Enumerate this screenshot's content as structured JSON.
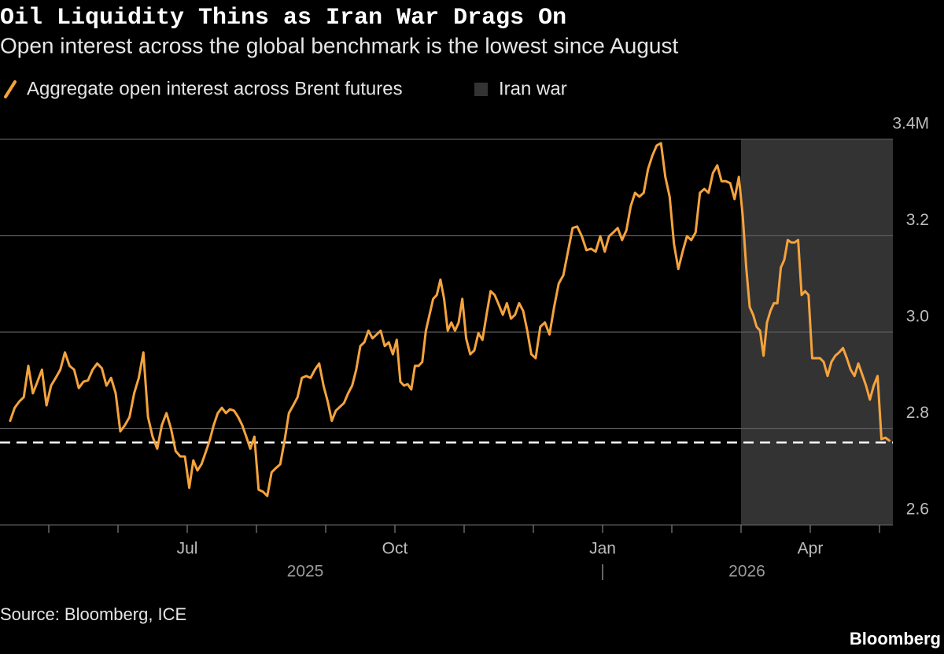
{
  "chart_data": {
    "type": "line",
    "title": "Oil Liquidity Thins as Iran War Drags On",
    "subtitle": "Open interest across the global benchmark is the lowest since August",
    "source": "Source: Bloomberg, ICE",
    "brand": "Bloomberg",
    "x": [
      "2025-04",
      "2025-04",
      "2025-04",
      "2025-04",
      "2025-04",
      "2025-04",
      "2025-04",
      "2025-04",
      "2025-04",
      "2025-05",
      "2025-05",
      "2025-05",
      "2025-05",
      "2025-05",
      "2025-05",
      "2025-05",
      "2025-05",
      "2025-05",
      "2025-05",
      "2025-05",
      "2025-05",
      "2025-05",
      "2025-05",
      "2025-05",
      "2025-06",
      "2025-06",
      "2025-06",
      "2025-06",
      "2025-06",
      "2025-06",
      "2025-06",
      "2025-06",
      "2025-06",
      "2025-06",
      "2025-06",
      "2025-06",
      "2025-06",
      "2025-06",
      "2025-06",
      "2025-07",
      "2025-07",
      "2025-07",
      "2025-07",
      "2025-07",
      "2025-07",
      "2025-07",
      "2025-07",
      "2025-07",
      "2025-07",
      "2025-07",
      "2025-07",
      "2025-07",
      "2025-07",
      "2025-07",
      "2025-07",
      "2025-07",
      "2025-08",
      "2025-08",
      "2025-08",
      "2025-08",
      "2025-08",
      "2025-08",
      "2025-08",
      "2025-08",
      "2025-08",
      "2025-08",
      "2025-08",
      "2025-08",
      "2025-08",
      "2025-08",
      "2025-08",
      "2025-08",
      "2025-09",
      "2025-09",
      "2025-09",
      "2025-09",
      "2025-09",
      "2025-09",
      "2025-09",
      "2025-09",
      "2025-09",
      "2025-09",
      "2025-09",
      "2025-09",
      "2025-09",
      "2025-09",
      "2025-09",
      "2025-09",
      "2025-09",
      "2025-10",
      "2025-10",
      "2025-10",
      "2025-10",
      "2025-10",
      "2025-10",
      "2025-10",
      "2025-10",
      "2025-10",
      "2025-10",
      "2025-10",
      "2025-10",
      "2025-10",
      "2025-10",
      "2025-10",
      "2025-10",
      "2025-10",
      "2025-10",
      "2025-10",
      "2025-11",
      "2025-11",
      "2025-11",
      "2025-11",
      "2025-11",
      "2025-11",
      "2025-11",
      "2025-11",
      "2025-11",
      "2025-11",
      "2025-11",
      "2025-11",
      "2025-11",
      "2025-11",
      "2025-11",
      "2025-11",
      "2025-11",
      "2025-12",
      "2025-12",
      "2025-12",
      "2025-12",
      "2025-12",
      "2025-12",
      "2025-12",
      "2025-12",
      "2025-12",
      "2025-12",
      "2025-12",
      "2025-12",
      "2025-12",
      "2025-12",
      "2025-12",
      "2026-01",
      "2026-01",
      "2026-01",
      "2026-01",
      "2026-01",
      "2026-01",
      "2026-01",
      "2026-01",
      "2026-01",
      "2026-01",
      "2026-01",
      "2026-01",
      "2026-01",
      "2026-01",
      "2026-01",
      "2026-01",
      "2026-02",
      "2026-02",
      "2026-02",
      "2026-02",
      "2026-02",
      "2026-02",
      "2026-02",
      "2026-02",
      "2026-02",
      "2026-02",
      "2026-02",
      "2026-02",
      "2026-02",
      "2026-02",
      "2026-02",
      "2026-02",
      "2026-03",
      "2026-03",
      "2026-03",
      "2026-03",
      "2026-03",
      "2026-03",
      "2026-03",
      "2026-03",
      "2026-03",
      "2026-03",
      "2026-03",
      "2026-03",
      "2026-03",
      "2026-03",
      "2026-03",
      "2026-03",
      "2026-03",
      "2026-03",
      "2026-03",
      "2026-03",
      "2026-04",
      "2026-04",
      "2026-04",
      "2026-04",
      "2026-04",
      "2026-04",
      "2026-04",
      "2026-04",
      "2026-04",
      "2026-04",
      "2026-04",
      "2026-04",
      "2026-04",
      "2026-04",
      "2026-04",
      "2026-04",
      "2026-04",
      "2026-04",
      "2026-05",
      "2026-05",
      "2026-05"
    ],
    "series": [
      {
        "name": "Aggregate open interest across Brent futures",
        "color": "#f5a33d",
        "values": [
          2.816,
          2.843,
          2.856,
          2.865,
          2.93,
          2.873,
          2.897,
          2.922,
          2.848,
          2.889,
          2.905,
          2.922,
          2.958,
          2.93,
          2.922,
          2.884,
          2.897,
          2.9,
          2.922,
          2.935,
          2.925,
          2.889,
          2.905,
          2.873,
          2.794,
          2.807,
          2.824,
          2.873,
          2.905,
          2.958,
          2.824,
          2.783,
          2.758,
          2.807,
          2.832,
          2.799,
          2.753,
          2.742,
          2.742,
          2.677,
          2.734,
          2.713,
          2.726,
          2.75,
          2.775,
          2.807,
          2.832,
          2.843,
          2.832,
          2.84,
          2.837,
          2.824,
          2.807,
          2.783,
          2.758,
          2.783,
          2.673,
          2.669,
          2.66,
          2.709,
          2.718,
          2.726,
          2.775,
          2.832,
          2.848,
          2.865,
          2.905,
          2.909,
          2.905,
          2.922,
          2.935,
          2.889,
          2.856,
          2.816,
          2.837,
          2.845,
          2.853,
          2.873,
          2.889,
          2.922,
          2.971,
          2.979,
          3.003,
          2.987,
          2.995,
          3.003,
          2.971,
          2.979,
          2.954,
          2.984,
          2.897,
          2.889,
          2.892,
          2.881,
          2.93,
          2.93,
          2.938,
          3.003,
          3.036,
          3.069,
          3.077,
          3.109,
          3.069,
          3.003,
          3.02,
          3.003,
          3.02,
          3.069,
          2.987,
          2.954,
          2.962,
          2.998,
          2.984,
          3.036,
          3.085,
          3.077,
          3.057,
          3.036,
          3.06,
          3.028,
          3.036,
          3.06,
          3.044,
          3.003,
          2.954,
          2.946,
          3.011,
          3.02,
          2.995,
          3.052,
          3.101,
          3.118,
          3.167,
          3.216,
          3.219,
          3.199,
          3.17,
          3.173,
          3.167,
          3.199,
          3.167,
          3.199,
          3.207,
          3.216,
          3.191,
          3.211,
          3.261,
          3.289,
          3.281,
          3.289,
          3.338,
          3.366,
          3.387,
          3.392,
          3.322,
          3.281,
          3.183,
          3.131,
          3.167,
          3.199,
          3.191,
          3.207,
          3.289,
          3.297,
          3.289,
          3.33,
          3.346,
          3.313,
          3.313,
          3.309,
          3.276,
          3.322,
          3.24,
          3.134,
          3.052,
          3.036,
          3.011,
          3.003,
          2.951,
          3.02,
          3.044,
          3.06,
          3.06,
          3.134,
          3.15,
          3.191,
          3.186,
          3.186,
          3.191,
          3.077,
          3.085,
          3.077,
          2.946,
          2.946,
          2.946,
          2.938,
          2.909,
          2.938,
          2.951,
          2.958,
          2.967,
          2.946,
          2.922,
          2.909,
          2.935,
          2.912,
          2.889,
          2.86,
          2.889,
          2.909,
          2.778,
          2.781,
          2.775
        ]
      }
    ],
    "xlim": [
      "2025-04",
      "2026-05"
    ],
    "xticks": [
      {
        "value": "2025-07",
        "label": "Jul"
      },
      {
        "value": "2025-10",
        "label": "Oct"
      },
      {
        "value": "2026-01",
        "label": "Jan"
      },
      {
        "value": "2026-04",
        "label": "Apr"
      }
    ],
    "year_labels": [
      2025,
      2026
    ],
    "ylim": [
      2.6,
      3.4
    ],
    "yticks": [
      2.6,
      2.8,
      {
        "value": 3,
        "label": "3.0"
      },
      3.2,
      {
        "value": 3.4,
        "label": "3.4M"
      }
    ],
    "grid": true,
    "shaded_region": {
      "name": "Iran war",
      "start": "2026-03",
      "color": "#333333"
    },
    "reference_line": {
      "value": 2.771,
      "style": "dashed",
      "color": "#ffffff"
    }
  }
}
